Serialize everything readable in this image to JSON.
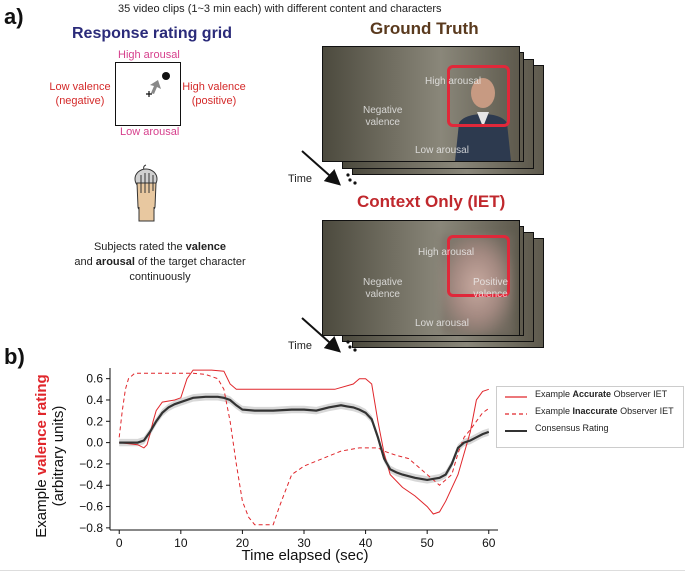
{
  "panel_a": {
    "label": "a)",
    "caption": "35 video clips (1~3 min each) with different content and characters",
    "grid": {
      "title": "Response rating grid",
      "high_arousal": "High arousal",
      "low_arousal": "Low arousal",
      "low_valence_1": "Low valence",
      "low_valence_2": "(negative)",
      "high_valence_1": "High valence",
      "high_valence_2": "(positive)"
    },
    "subjects_text": {
      "line1_pre": "Subjects rated the ",
      "line1_bold": "valence",
      "line2_pre": "and ",
      "line2_bold": "arousal",
      "line2_post": " of the target character",
      "line3": "continuously"
    },
    "ground_truth": {
      "title": "Ground Truth",
      "overlay_high": "High arousal",
      "overlay_neg_1": "Negative",
      "overlay_neg_2": "valence",
      "overlay_low": "Low arousal"
    },
    "context_only": {
      "title": "Context Only (IET)",
      "overlay_high": "High arousal",
      "overlay_neg_1": "Negative",
      "overlay_neg_2": "valence",
      "overlay_pos_1": "Positive",
      "overlay_pos_2": "valence",
      "overlay_low": "Low arousal"
    },
    "time_label": "Time"
  },
  "panel_b": {
    "label": "b)",
    "legend": {
      "accurate_pre": "Example ",
      "accurate_bold": "Accurate",
      "accurate_post": " Observer IET",
      "inaccurate_pre": "Example ",
      "inaccurate_bold": "Inaccurate",
      "inaccurate_post": " Observer IET",
      "consensus": "Consensus Rating"
    }
  },
  "chart_data": {
    "type": "line",
    "xlabel": "Time elapsed (sec)",
    "ylabel_prefix": "Example ",
    "ylabel_highlight": "valence rating",
    "ylabel_units": "(arbitrary units)",
    "xlim": [
      -1.5,
      61.5
    ],
    "ylim": [
      -0.82,
      0.7
    ],
    "xticks": [
      "0",
      "10",
      "20",
      "30",
      "40",
      "50",
      "60"
    ],
    "yticks": [
      "0.6",
      "0.4",
      "0.2",
      "0.0",
      "−0.2",
      "−0.4",
      "−0.6",
      "−0.8"
    ],
    "colors": {
      "accurate": "#e0262b",
      "inaccurate": "#e0262b",
      "consensus": "#333333",
      "band": "#c8c8c8"
    },
    "series": [
      {
        "name": "Example Accurate Observer IET",
        "style": "solid",
        "x": [
          0,
          3,
          4,
          4.5,
          5,
          5.5,
          6,
          7,
          9,
          10,
          11,
          12,
          15,
          17,
          18,
          19,
          25,
          30,
          35,
          38,
          39,
          40,
          41,
          42,
          43,
          44,
          46,
          48,
          50,
          51,
          52,
          53,
          55,
          57,
          58,
          59,
          60
        ],
        "y": [
          0.0,
          -0.02,
          -0.05,
          -0.02,
          0.08,
          0.2,
          0.3,
          0.38,
          0.4,
          0.42,
          0.6,
          0.68,
          0.68,
          0.67,
          0.55,
          0.5,
          0.5,
          0.5,
          0.5,
          0.55,
          0.6,
          0.6,
          0.55,
          0.2,
          -0.1,
          -0.3,
          -0.42,
          -0.5,
          -0.6,
          -0.67,
          -0.65,
          -0.55,
          -0.3,
          0.1,
          0.4,
          0.48,
          0.5
        ]
      },
      {
        "name": "Example Inaccurate Observer IET",
        "style": "dashed",
        "x": [
          0,
          0.5,
          1,
          1.5,
          2.5,
          4,
          6,
          8,
          10,
          12,
          14,
          16,
          17,
          18,
          19,
          20,
          21,
          22,
          23,
          25,
          26,
          27,
          28,
          30,
          33,
          36,
          39,
          40,
          42,
          43,
          44,
          45,
          47,
          50,
          52,
          54,
          55,
          56,
          57,
          58,
          59,
          60
        ],
        "y": [
          0.05,
          0.3,
          0.5,
          0.6,
          0.65,
          0.65,
          0.65,
          0.65,
          0.65,
          0.65,
          0.64,
          0.6,
          0.5,
          0.2,
          -0.2,
          -0.55,
          -0.7,
          -0.77,
          -0.77,
          -0.77,
          -0.6,
          -0.45,
          -0.3,
          -0.22,
          -0.15,
          -0.08,
          -0.05,
          -0.05,
          -0.05,
          -0.08,
          -0.1,
          -0.12,
          -0.15,
          -0.3,
          -0.4,
          -0.3,
          -0.1,
          0.05,
          0.12,
          0.2,
          0.28,
          0.32
        ]
      },
      {
        "name": "Consensus Rating",
        "style": "solid-band",
        "x": [
          0,
          1,
          2,
          3,
          4,
          5,
          6,
          7,
          8,
          9,
          10,
          12,
          14,
          16,
          17,
          18,
          19,
          20,
          22,
          25,
          28,
          30,
          32,
          34,
          36,
          37,
          38,
          39,
          40,
          41,
          42,
          43,
          44,
          45,
          46,
          48,
          50,
          52,
          53,
          54,
          55,
          56,
          57,
          58,
          59,
          60
        ],
        "y": [
          0.0,
          0.0,
          0.0,
          0.0,
          0.02,
          0.1,
          0.2,
          0.28,
          0.33,
          0.36,
          0.38,
          0.42,
          0.43,
          0.43,
          0.42,
          0.4,
          0.35,
          0.31,
          0.3,
          0.3,
          0.31,
          0.31,
          0.3,
          0.33,
          0.35,
          0.34,
          0.33,
          0.31,
          0.28,
          0.22,
          0.05,
          -0.15,
          -0.25,
          -0.28,
          -0.3,
          -0.33,
          -0.35,
          -0.33,
          -0.3,
          -0.2,
          -0.05,
          0.0,
          0.02,
          0.05,
          0.08,
          0.1
        ]
      }
    ]
  }
}
